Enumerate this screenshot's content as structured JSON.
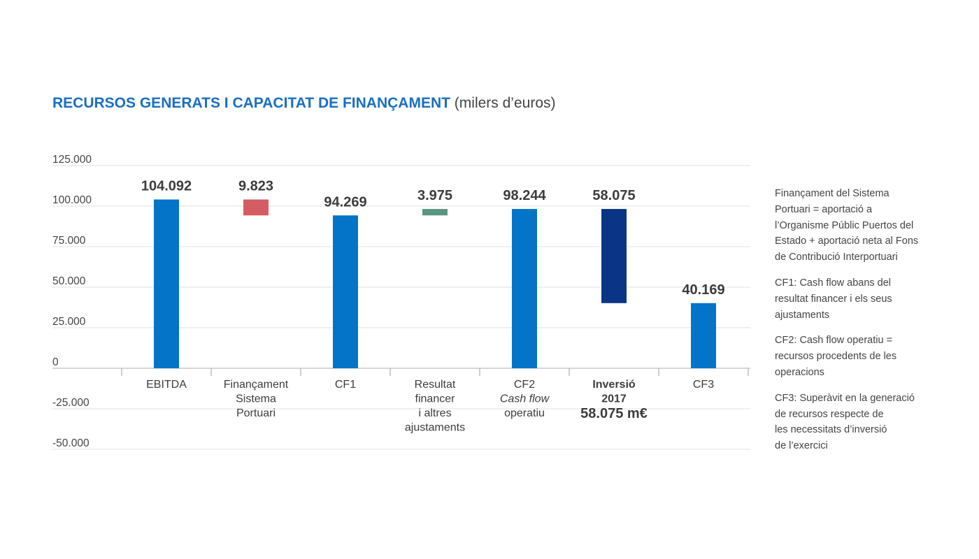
{
  "title": {
    "main": "RECURSOS GENERATS I CAPACITAT DE FINANÇAMENT",
    "unit": "(milers d’euros)"
  },
  "chart_data": {
    "type": "bar",
    "subtype": "waterfall",
    "yticks": [
      "125.000",
      "100.000",
      "75.000",
      "50.000",
      "25.000",
      "0",
      "-25.000",
      "-50.000"
    ],
    "ylim": [
      -50000,
      125000
    ],
    "grid": true,
    "categories": [
      {
        "lines": [
          "EBITDA"
        ]
      },
      {
        "lines": [
          "Finançament",
          "Sistema",
          "Portuari"
        ]
      },
      {
        "lines": [
          "CF1"
        ]
      },
      {
        "lines": [
          "Resultat",
          "financer",
          "i altres",
          "ajustaments"
        ]
      },
      {
        "lines": [
          "CF2",
          "Cash flow",
          "operatiu"
        ],
        "italic_line": 1
      },
      {
        "lines": [
          "Inversió",
          "2017"
        ],
        "bold": true,
        "extra": "58.075 m€"
      },
      {
        "lines": [
          "CF3"
        ]
      }
    ],
    "bars": [
      {
        "label": "104.092",
        "bottom": 0,
        "top": 104092,
        "color": "#0474c8"
      },
      {
        "label": "9.823",
        "bottom": 94269,
        "top": 104092,
        "color": "#d45d63"
      },
      {
        "label": "94.269",
        "bottom": 0,
        "top": 94269,
        "color": "#0474c8"
      },
      {
        "label": "3.975",
        "bottom": 94269,
        "top": 98244,
        "color": "#5c9482"
      },
      {
        "label": "98.244",
        "bottom": 0,
        "top": 98244,
        "color": "#0474c8"
      },
      {
        "label": "58.075",
        "bottom": 40169,
        "top": 98244,
        "color": "#0a3586"
      },
      {
        "label": "40.169",
        "bottom": 0,
        "top": 40169,
        "color": "#0474c8"
      }
    ]
  },
  "notes": [
    "Finançament del Sistema\nPortuari = aportació a\nl’Organisme Públic Puertos del\nEstado + aportació neta al Fons\nde Contribució Interportuari",
    "CF1: Cash flow abans del\nresultat financer i els seus\najustaments",
    "CF2: Cash flow operatiu =\nrecursos procedents de les\noperacions",
    "CF3: Superàvit en la generació\nde recursos respecte de\nles necessitats d’inversió\nde l’exercici"
  ]
}
